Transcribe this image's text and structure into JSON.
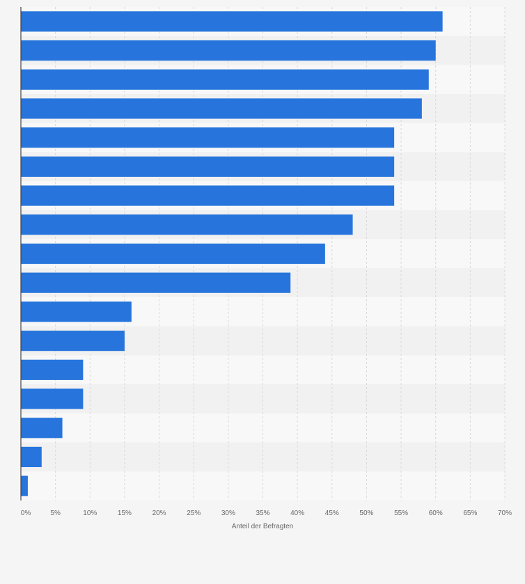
{
  "chart_data": {
    "type": "bar",
    "orientation": "horizontal",
    "categories": [
      "",
      "",
      "",
      "",
      "",
      "",
      "",
      "",
      "",
      "",
      "",
      "",
      "",
      "",
      "",
      "",
      ""
    ],
    "values": [
      61,
      60,
      59,
      58,
      54,
      54,
      54,
      48,
      44,
      39,
      16,
      15,
      9,
      9,
      6,
      3,
      1
    ],
    "xlabel": "Anteil der Befragten",
    "ylabel": "",
    "xlim": [
      0,
      70
    ],
    "xticks": [
      0,
      5,
      10,
      15,
      20,
      25,
      30,
      35,
      40,
      45,
      50,
      55,
      60,
      65,
      70
    ],
    "xtick_labels": [
      "0%",
      "5%",
      "10%",
      "15%",
      "20%",
      "25%",
      "30%",
      "35%",
      "40%",
      "45%",
      "50%",
      "55%",
      "60%",
      "65%",
      "70%"
    ],
    "grid": true,
    "colors": {
      "bar": "#2775dc",
      "band_light": "#f8f8f8",
      "band_dark": "#f1f1f1",
      "grid": "#d8d8d8",
      "axis": "#444444",
      "text": "#666666",
      "background": "#f5f5f6"
    }
  }
}
